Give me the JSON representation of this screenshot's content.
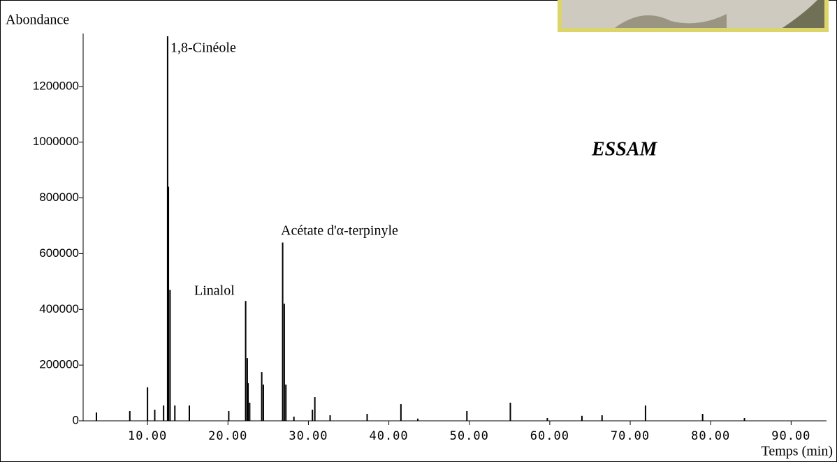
{
  "chart_data": {
    "type": "spectrum",
    "y_label": "Abondance",
    "x_label": "Temps (min)",
    "annotations": [
      "1,8-Cinéole",
      "Linalol",
      "Acétate d'α-terpinyle",
      "ESSAM"
    ],
    "color": "#000000",
    "x": [
      3.65,
      7.8,
      10.0,
      10.9,
      12.0,
      12.5,
      12.6,
      12.8,
      13.4,
      15.2,
      20.1,
      22.2,
      22.4,
      22.5,
      22.7,
      24.2,
      24.4,
      26.8,
      27.0,
      27.2,
      28.2,
      30.5,
      30.8,
      32.7,
      37.3,
      41.5,
      43.6,
      49.7,
      55.1,
      59.7,
      64.0,
      66.5,
      71.9,
      79.0,
      84.2
    ],
    "values": [
      30000,
      35000,
      120000,
      40000,
      55000,
      1380000,
      840000,
      470000,
      55000,
      55000,
      35000,
      430000,
      225000,
      135000,
      65000,
      175000,
      130000,
      640000,
      420000,
      130000,
      15000,
      40000,
      85000,
      20000,
      25000,
      60000,
      8000,
      35000,
      65000,
      10000,
      18000,
      20000,
      55000,
      25000,
      10000
    ],
    "xlim": [
      2,
      94.4
    ],
    "ylim": [
      0,
      1390000
    ],
    "xticks": [
      {
        "value": 10,
        "label": "10.00"
      },
      {
        "value": 20,
        "label": "20.00"
      },
      {
        "value": 30,
        "label": "30.00"
      },
      {
        "value": 40,
        "label": "40.00"
      },
      {
        "value": 50,
        "label": "50.00"
      },
      {
        "value": 60,
        "label": "60.00"
      },
      {
        "value": 70,
        "label": "70.00"
      },
      {
        "value": 80,
        "label": "80.00"
      },
      {
        "value": 90,
        "label": "90.00"
      }
    ],
    "yticks": [
      0,
      200000,
      400000,
      600000,
      800000,
      1000000,
      1200000
    ]
  }
}
